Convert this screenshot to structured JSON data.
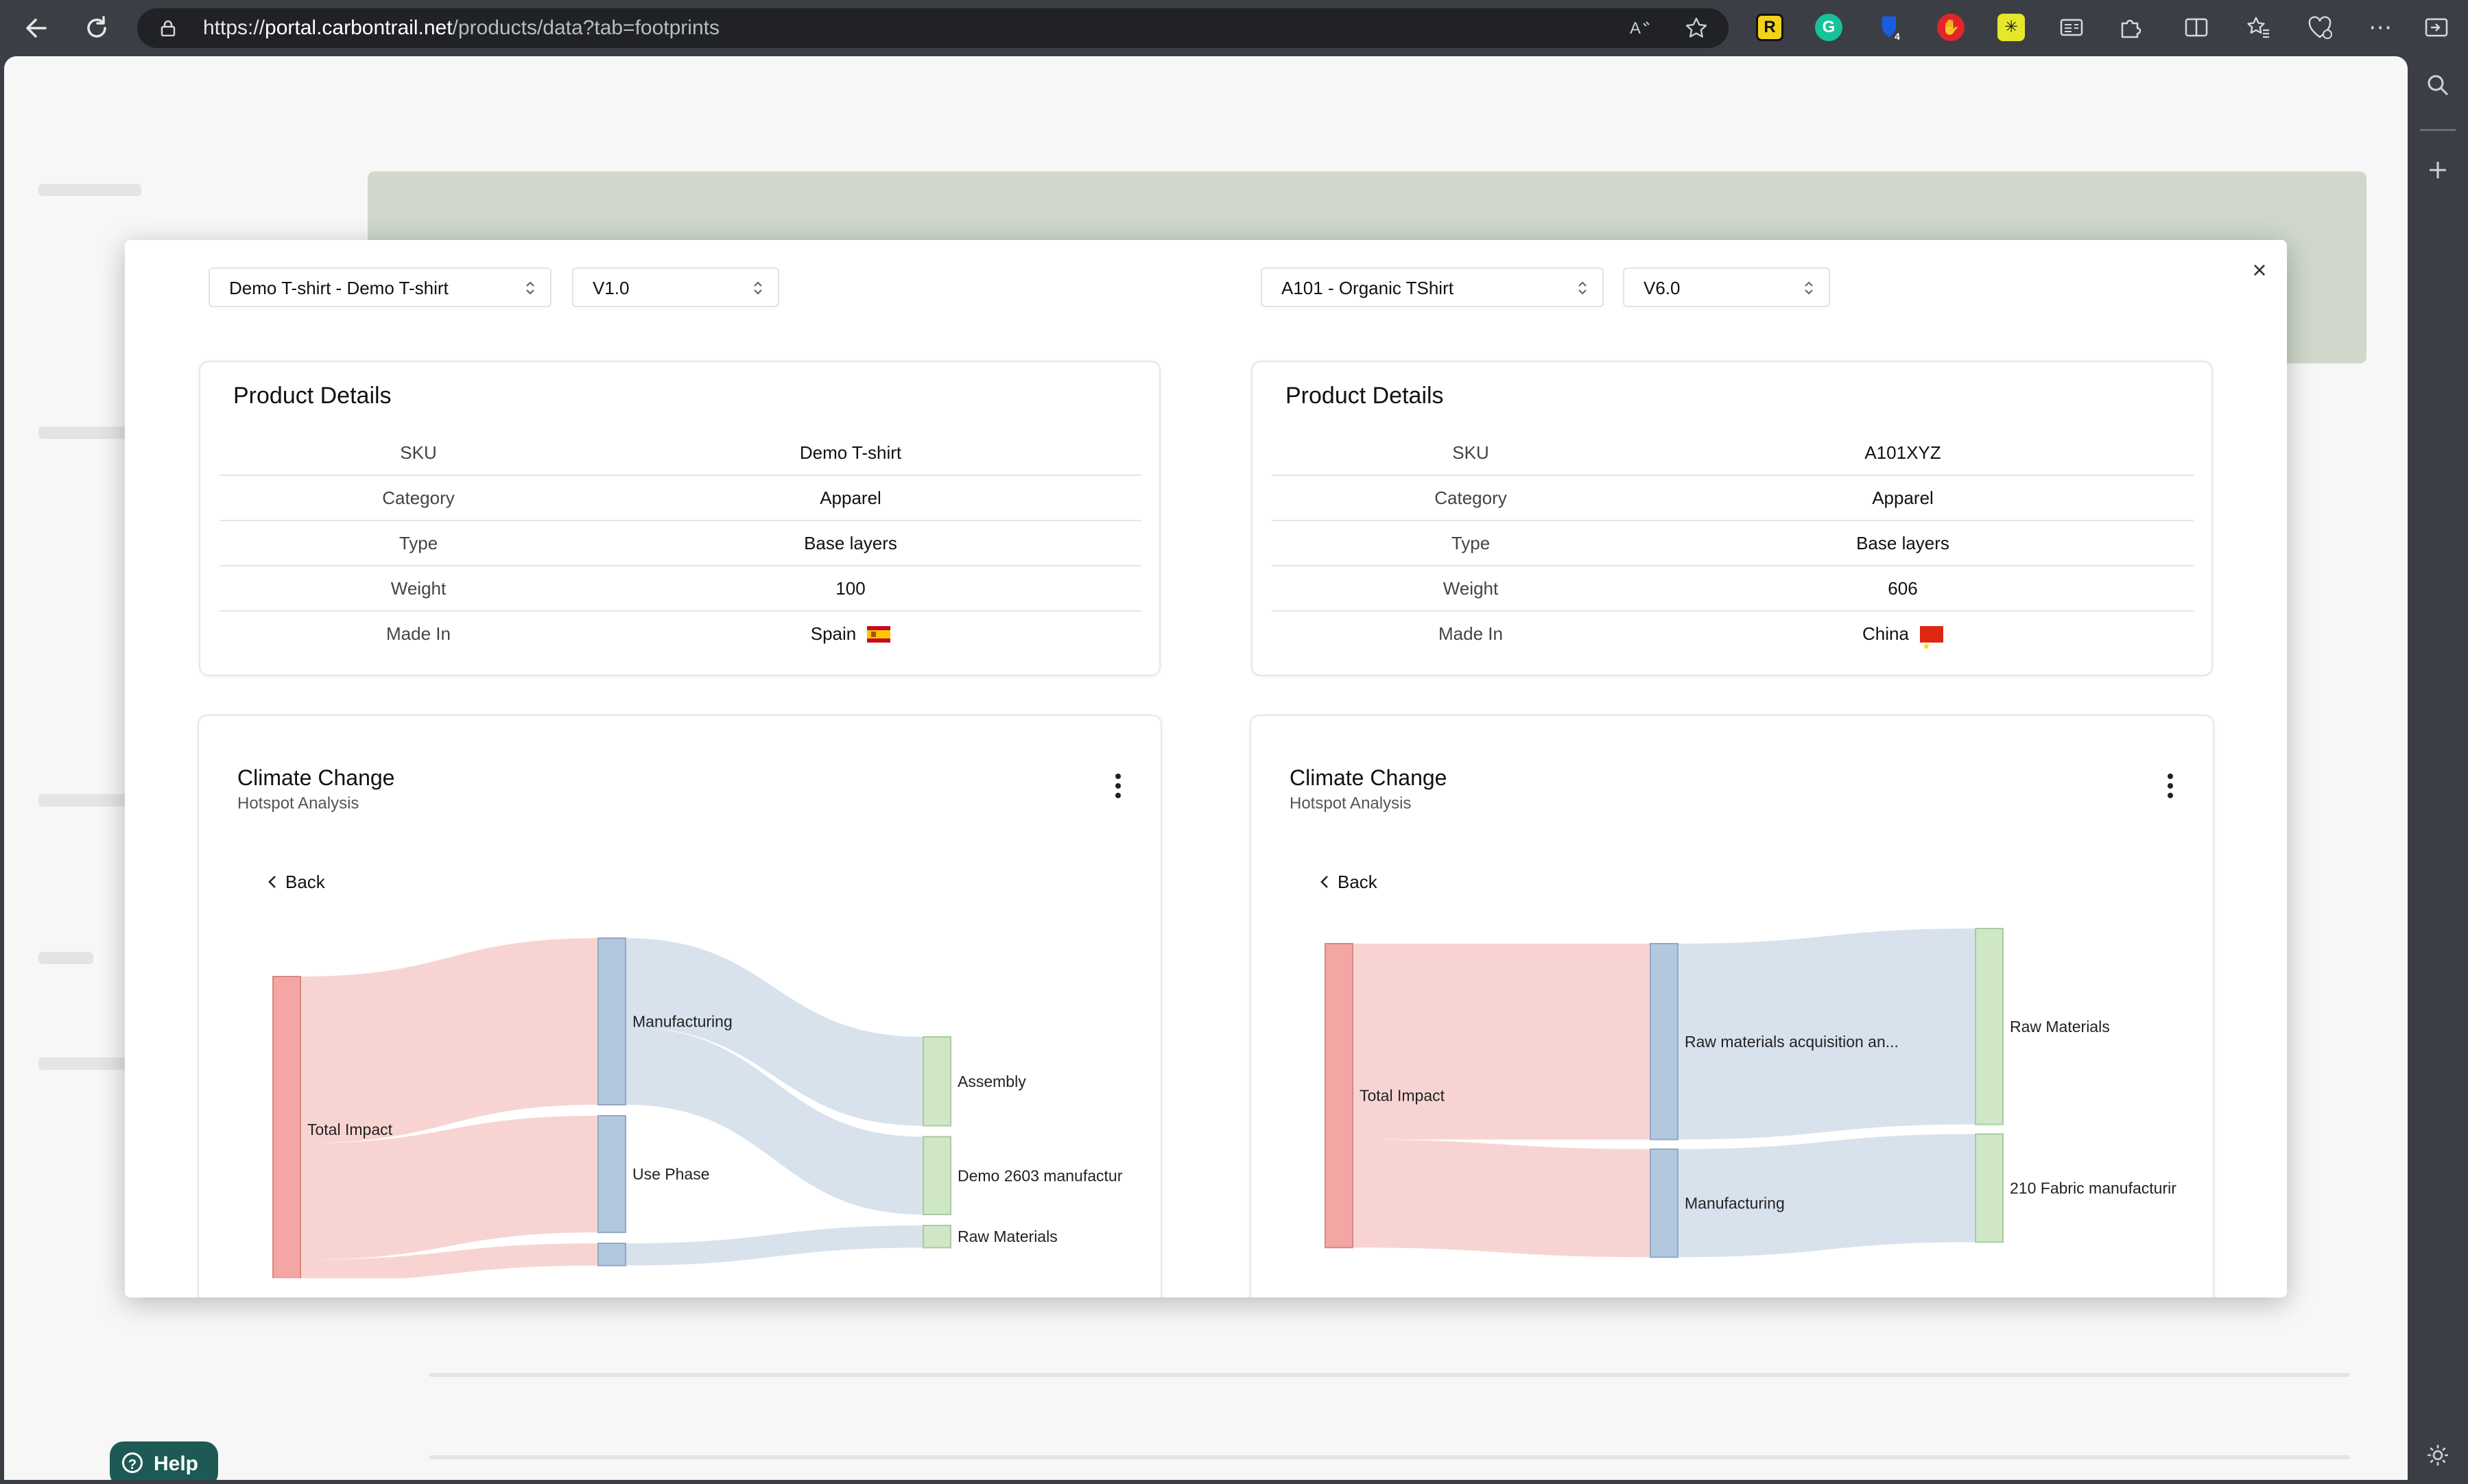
{
  "browser": {
    "url_scheme": "https://",
    "url_host": "portal.carbontrail.net",
    "url_path": "/products/data?tab=footprints",
    "extensions": [
      {
        "name": "readwise-extension",
        "label": "R",
        "bg": "#f3d21b",
        "fg": "#111111"
      },
      {
        "name": "grammarly-extension",
        "label": "G",
        "bg": "#15c39a",
        "fg": "#ffffff"
      },
      {
        "name": "bitwarden-extension",
        "label": "4",
        "bg": "#175ddc",
        "fg": "#ffffff"
      },
      {
        "name": "adblock-extension",
        "label": "✋",
        "bg": "#e0262b",
        "fg": "#ffffff"
      },
      {
        "name": "yellow-star-extension",
        "label": "✳",
        "bg": "#e6e72a",
        "fg": "#222222"
      }
    ]
  },
  "help": {
    "label": "Help"
  },
  "modal": {
    "left": {
      "product_select": "Demo T-shirt - Demo T-shirt",
      "version_select": "V1.0",
      "details": {
        "title": "Product Details",
        "rows": [
          {
            "key": "SKU",
            "value": "Demo T-shirt"
          },
          {
            "key": "Category",
            "value": "Apparel"
          },
          {
            "key": "Type",
            "value": "Base layers"
          },
          {
            "key": "Weight",
            "value": "100"
          },
          {
            "key": "Made In",
            "value": "Spain"
          }
        ]
      },
      "chart": {
        "title": "Climate Change",
        "subtitle": "Hotspot Analysis",
        "back_label": "Back"
      }
    },
    "right": {
      "product_select": "A101 - Organic TShirt",
      "version_select": "V6.0",
      "details": {
        "title": "Product Details",
        "rows": [
          {
            "key": "SKU",
            "value": "A101XYZ"
          },
          {
            "key": "Category",
            "value": "Apparel"
          },
          {
            "key": "Type",
            "value": "Base layers"
          },
          {
            "key": "Weight",
            "value": "606"
          },
          {
            "key": "Made In",
            "value": "China"
          }
        ]
      },
      "chart": {
        "title": "Climate Change",
        "subtitle": "Hotspot Analysis",
        "back_label": "Back"
      }
    }
  },
  "chart_data": [
    {
      "type": "sankey",
      "title": "Climate Change",
      "subtitle": "Hotspot Analysis",
      "colors": {
        "level0": "#f4a6a4",
        "level1": "#b3c8df",
        "level2": "#cfe6c7",
        "link0": "#f6cfcd",
        "link1": "#d4dfeb"
      },
      "nodes": [
        {
          "name": "Total Impact",
          "level": 0
        },
        {
          "name": "Manufacturing",
          "level": 1
        },
        {
          "name": "Use Phase",
          "level": 1
        },
        {
          "name": "",
          "level": 1
        },
        {
          "name": "Assembly",
          "level": 2
        },
        {
          "name": "Demo 2603 manufactur",
          "level": 2
        },
        {
          "name": "Raw Materials",
          "level": 2
        }
      ],
      "links": [
        {
          "source": "Total Impact",
          "target": "Manufacturing",
          "value": 30
        },
        {
          "source": "Total Impact",
          "target": "Use Phase",
          "value": 21
        },
        {
          "source": "Total Impact",
          "target": "",
          "value": 4
        },
        {
          "source": "Manufacturing",
          "target": "Assembly",
          "value": 16
        },
        {
          "source": "Manufacturing",
          "target": "Demo 2603 manufactur",
          "value": 14
        },
        {
          "source": "",
          "target": "Raw Materials",
          "value": 4
        }
      ]
    },
    {
      "type": "sankey",
      "title": "Climate Change",
      "subtitle": "Hotspot Analysis",
      "colors": {
        "level0": "#f4a6a4",
        "level1": "#b3c8df",
        "level2": "#cfe6c7",
        "link0": "#f6cfcd",
        "link1": "#d4dfeb"
      },
      "nodes": [
        {
          "name": "Total Impact",
          "level": 0
        },
        {
          "name": "Raw materials acquisition an...",
          "level": 1
        },
        {
          "name": "Manufacturing",
          "level": 1
        },
        {
          "name": "Raw Materials",
          "level": 2
        },
        {
          "name": "210 Fabric manufacturir",
          "level": 2
        }
      ],
      "links": [
        {
          "source": "Total Impact",
          "target": "Raw materials acquisition an...",
          "value": 29
        },
        {
          "source": "Total Impact",
          "target": "Manufacturing",
          "value": 16
        },
        {
          "source": "Raw materials acquisition an...",
          "target": "Raw Materials",
          "value": 29
        },
        {
          "source": "Manufacturing",
          "target": "210 Fabric manufacturir",
          "value": 16
        }
      ]
    }
  ]
}
